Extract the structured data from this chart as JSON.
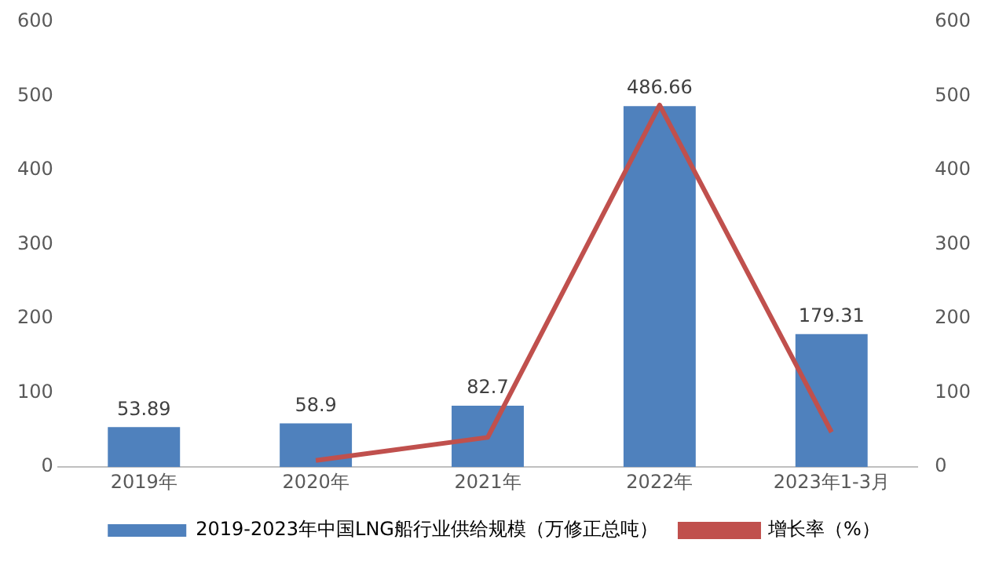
{
  "chart_data": {
    "type": "bar",
    "categories": [
      "2019年",
      "2020年",
      "2021年",
      "2022年",
      "2023年1-3月"
    ],
    "series": [
      {
        "name": "2019-2023年中国LNG船行业供给规模（万修正总吨）",
        "color": "#4f81bd",
        "values": [
          53.89,
          58.9,
          82.7,
          486.66,
          179.31
        ],
        "value_labels": [
          "53.89",
          "58.9",
          "82.7",
          "486.66",
          "179.31"
        ]
      },
      {
        "name": "增长率（%）",
        "type": "line",
        "axis": "y2",
        "color": "#c0504d",
        "values": [
          null,
          9,
          40,
          488,
          47
        ]
      }
    ],
    "ylim": [
      0,
      600
    ],
    "yticks": [
      0,
      100,
      200,
      300,
      400,
      500,
      600
    ],
    "y2lim": [
      0,
      600
    ],
    "y2ticks": [
      0,
      100,
      200,
      300,
      400,
      500,
      600
    ],
    "grid": false,
    "legend": "bottom",
    "marker": "none",
    "line_style": "solid"
  }
}
